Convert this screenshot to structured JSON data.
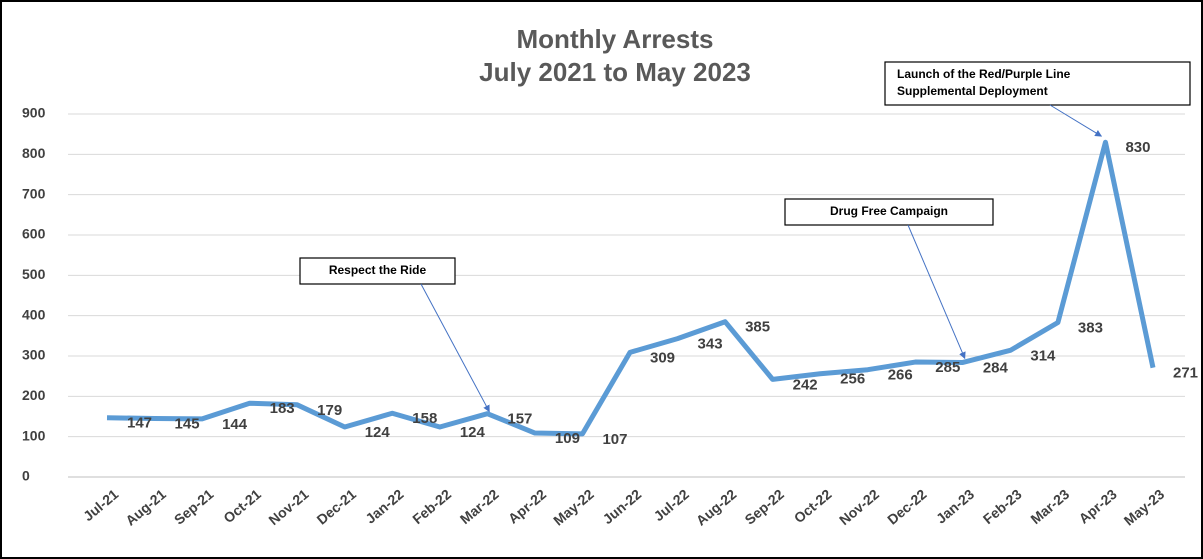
{
  "chart_data": {
    "type": "line",
    "title": "Monthly Arrests",
    "subtitle": "July 2021 to May 2023",
    "categories": [
      "Jul-21",
      "Aug-21",
      "Sep-21",
      "Oct-21",
      "Nov-21",
      "Dec-21",
      "Jan-22",
      "Feb-22",
      "Mar-22",
      "Apr-22",
      "May-22",
      "Jun-22",
      "Jul-22",
      "Aug-22",
      "Sep-22",
      "Oct-22",
      "Nov-22",
      "Dec-22",
      "Jan-23",
      "Feb-23",
      "Mar-23",
      "Apr-23",
      "May-23"
    ],
    "series": [
      {
        "name": "Monthly Arrests",
        "color": "#5b9bd5",
        "values": [
          147,
          145,
          144,
          183,
          179,
          124,
          158,
          124,
          157,
          109,
          107,
          309,
          343,
          385,
          242,
          256,
          266,
          285,
          284,
          314,
          383,
          830,
          271
        ]
      }
    ],
    "ylim": [
      0,
      900
    ],
    "yticks": [
      0,
      100,
      200,
      300,
      400,
      500,
      600,
      700,
      800,
      900
    ],
    "grid": true,
    "annotations": [
      {
        "text": [
          "Respect the Ride"
        ]
      },
      {
        "text": [
          "Drug Free Campaign"
        ]
      },
      {
        "text": [
          "Launch of the Red/Purple Line",
          "Supplemental Deployment"
        ]
      }
    ]
  }
}
